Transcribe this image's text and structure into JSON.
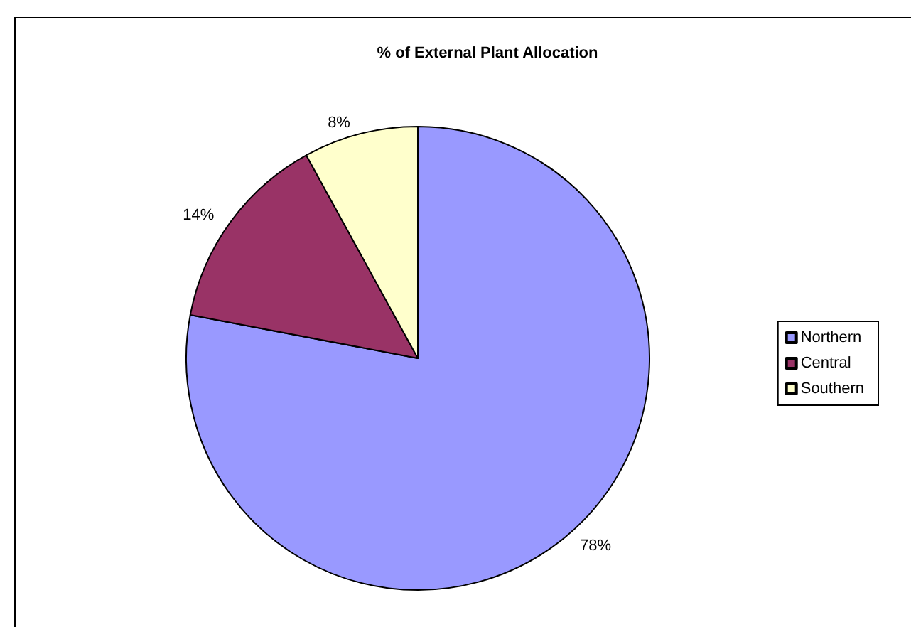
{
  "chart_data": {
    "type": "pie",
    "title": "% of External Plant Allocation",
    "categories": [
      "Northern",
      "Central",
      "Southern"
    ],
    "values": [
      78,
      14,
      8
    ],
    "colors": [
      "#9999ff",
      "#993366",
      "#ffffcc"
    ],
    "value_labels": [
      "78%",
      "14%",
      "8%"
    ],
    "legend": "right"
  }
}
